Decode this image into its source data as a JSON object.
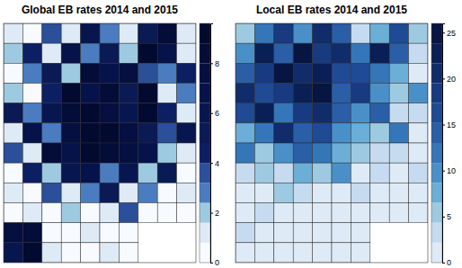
{
  "chart_data": [
    {
      "type": "choropleth",
      "title": "Global EB rates 2014 and 2015",
      "cells": [
        [
          1.2,
          0.5,
          3.5,
          1.0,
          6.0,
          2.5,
          0.8,
          5.5,
          8.5,
          1.5
        ],
        [
          2.0,
          4.5,
          1.5,
          7.0,
          3.0,
          5.0,
          2.2,
          9.0,
          6.5,
          0.9
        ],
        [
          0.6,
          3.0,
          5.5,
          2.0,
          8.0,
          6.5,
          7.5,
          3.5,
          2.8,
          4.0
        ],
        [
          1.8,
          0.7,
          4.2,
          9.0,
          7.0,
          8.5,
          5.0,
          9.5,
          1.2,
          2.5
        ],
        [
          5.0,
          2.5,
          6.0,
          8.0,
          9.2,
          7.8,
          6.0,
          8.8,
          4.5,
          0.8
        ],
        [
          0.9,
          6.5,
          3.0,
          7.5,
          8.8,
          9.4,
          7.2,
          5.5,
          3.2,
          6.0
        ],
        [
          3.5,
          1.5,
          8.0,
          6.8,
          9.0,
          8.2,
          7.9,
          6.5,
          2.0,
          1.0
        ],
        [
          0.5,
          4.0,
          2.2,
          5.8,
          7.0,
          3.0,
          6.2,
          1.8,
          4.8,
          0.6
        ],
        [
          1.0,
          0.4,
          3.8,
          1.2,
          2.4,
          5.2,
          0.9,
          3.0,
          0.5,
          1.4
        ],
        [
          0.3,
          0.8,
          0.5,
          2.0,
          0.6,
          1.5,
          3.4,
          0.7,
          0.4,
          0.2
        ],
        [
          7.5,
          8.5,
          0.6,
          0.4,
          1.0,
          0.3,
          0.5,
          null,
          null,
          null
        ],
        [
          6.0,
          9.0,
          1.2,
          0.2,
          0.5,
          0.8,
          0.4,
          null,
          null,
          null
        ]
      ],
      "color_range": [
        0,
        9.6
      ],
      "color_ticks": [
        0,
        2,
        4,
        6,
        8
      ],
      "color_scale": [
        "#f7fbff",
        "#deebf7",
        "#9ecae1",
        "#4a7cbf",
        "#2c4f9a",
        "#0c1f63",
        "#0a1a55",
        "#081650",
        "#06124a",
        "#050f40",
        "#040c38",
        "#030a30"
      ]
    },
    {
      "type": "choropleth",
      "title": "Local EB rates 2014 and 2015",
      "cells": [
        [
          6,
          12,
          18,
          9,
          20,
          14,
          4,
          8,
          16,
          5
        ],
        [
          10,
          22,
          15,
          24,
          19,
          21,
          11,
          23,
          13,
          3
        ],
        [
          14,
          18,
          25,
          20,
          23,
          17,
          16,
          12,
          7,
          2
        ],
        [
          21,
          16,
          19,
          22,
          24,
          15,
          18,
          10,
          6,
          9
        ],
        [
          17,
          23,
          12,
          18,
          20,
          13,
          9,
          14,
          4,
          3
        ],
        [
          8,
          11,
          20,
          14,
          16,
          10,
          7,
          5,
          12,
          2
        ],
        [
          12,
          5,
          9,
          13,
          11,
          8,
          6,
          3,
          4,
          1
        ],
        [
          3,
          6,
          4,
          7,
          5,
          9,
          2,
          4,
          1,
          3
        ],
        [
          2,
          1,
          5,
          3,
          2,
          1,
          4,
          0.5,
          2,
          1
        ],
        [
          1,
          3,
          0.5,
          2,
          1,
          0.5,
          1,
          2,
          0.5,
          0.3
        ],
        [
          4,
          2,
          1,
          0.5,
          0.3,
          1,
          0.4,
          null,
          null,
          null
        ],
        [
          2,
          1,
          0.6,
          0.2,
          0.5,
          0.3,
          0.2,
          null,
          null,
          null
        ]
      ],
      "color_range": [
        0,
        26
      ],
      "color_ticks": [
        0,
        5,
        10,
        15,
        20,
        25
      ],
      "color_scale": [
        "#deebf7",
        "#c6dbef",
        "#9ecae1",
        "#6baed6",
        "#4a90c8",
        "#3576b8",
        "#2a5ea6",
        "#1f4a94",
        "#173a80",
        "#102c6a",
        "#0a1f55",
        "#061542"
      ]
    }
  ]
}
